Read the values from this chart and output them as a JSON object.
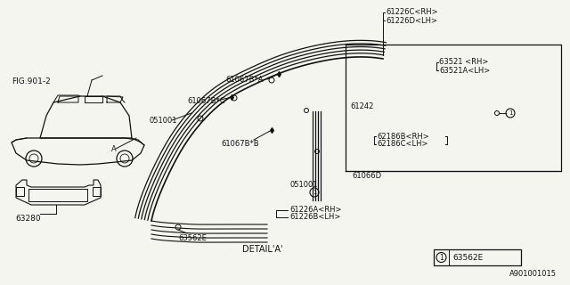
{
  "bg_color": "#f5f5f0",
  "fig_label": "FIG.901-2",
  "detail_label": "DETAIL’A’",
  "detail_label2": "DETAIL*A*",
  "part_number": "A901001015",
  "labels": {
    "61226C_RH": "61226C<RH>",
    "61226D_LH": "61226D<LH>",
    "63521_RH": "63521 <RH>",
    "63521A_LH": "63521A<LH>",
    "61242": "61242",
    "62186B_RH": "62186B<RH>",
    "62186C_LH": "62186C<LH>",
    "61066D": "61066D",
    "051001a": "051001",
    "051001b": "051001",
    "61067B_A": "61067B*A",
    "61067B_C": "61067B*C",
    "61067B_B": "61067B*B",
    "63562E": "63562E",
    "61226A_RH": "61226A<RH>",
    "61226B_LH": "61226B<LH>",
    "63280": "63280",
    "A": "A"
  },
  "lc": "#111111",
  "fs": 6.0
}
